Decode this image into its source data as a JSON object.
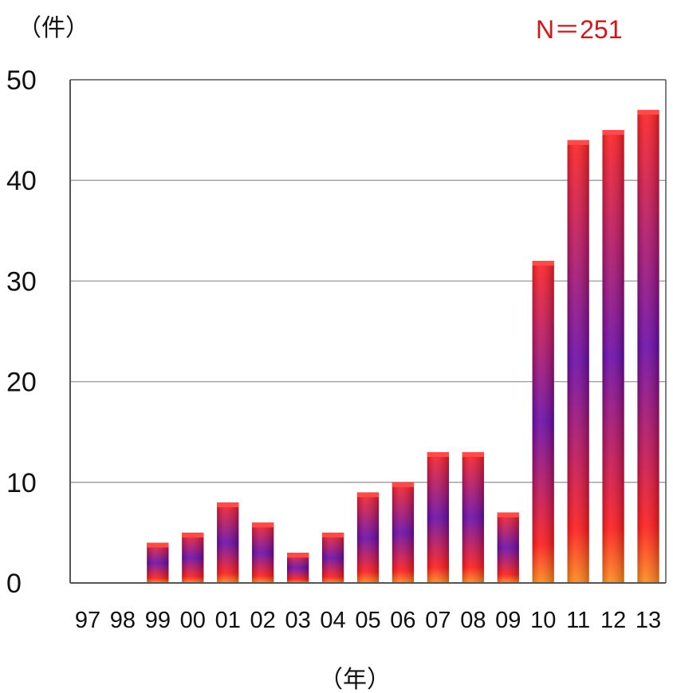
{
  "chart_data": {
    "type": "bar",
    "categories": [
      "97",
      "98",
      "99",
      "00",
      "01",
      "02",
      "03",
      "04",
      "05",
      "06",
      "07",
      "08",
      "09",
      "10",
      "11",
      "12",
      "13"
    ],
    "values": [
      0,
      0,
      4,
      5,
      8,
      6,
      3,
      5,
      9,
      10,
      13,
      13,
      7,
      32,
      44,
      45,
      47
    ],
    "ylim": [
      0,
      50
    ],
    "yticks": [
      0,
      10,
      20,
      30,
      40,
      50
    ],
    "ylabel": "（件）",
    "xlabel": "（年）",
    "annotation": "N＝251",
    "grid": true,
    "legend": "none",
    "colors": {
      "bar_top": "#ff2020",
      "bar_mid": "#6a0aa8",
      "bar_bottom": "#ff1a1a",
      "bar_base": "#ff8a1a",
      "annotation": "#d01818",
      "grid": "#9a9a9a",
      "axis": "#555555"
    }
  }
}
